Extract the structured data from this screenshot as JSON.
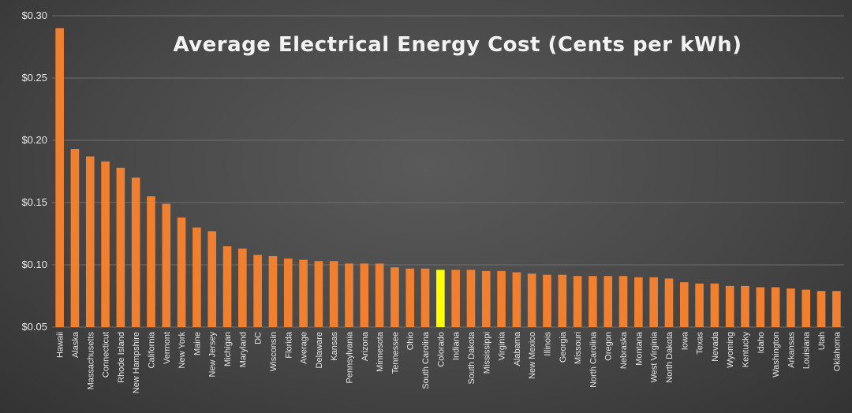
{
  "chart_data": {
    "type": "bar",
    "title": "Average Electrical Energy Cost (Cents per kWh)",
    "xlabel": "",
    "ylabel": "",
    "ylim": [
      0.05,
      0.3
    ],
    "yticks": [
      0.05,
      0.1,
      0.15,
      0.2,
      0.25,
      0.3
    ],
    "ytick_labels": [
      "$0.05",
      "$0.10",
      "$0.15",
      "$0.20",
      "$0.25",
      "$0.30"
    ],
    "grid": true,
    "bar_color": "#f07f30",
    "highlight_color": "#ffff00",
    "highlight_category": "Colorado",
    "categories": [
      "Hawaii",
      "Alaska",
      "Massachusetts",
      "Connecticut",
      "Rhode Island",
      "New Hampshire",
      "California",
      "Vermont",
      "New York",
      "Maine",
      "New Jersey",
      "Michigan",
      "Maryland",
      "DC",
      "Wisconsin",
      "Florida",
      "Average",
      "Delaware",
      "Kansas",
      "Pennsylvania",
      "Arizona",
      "Minnesota",
      "Tennessee",
      "Ohio",
      "South Carolina",
      "Colorado",
      "Indiana",
      "South Dakota",
      "Mississippi",
      "Virginia",
      "Alabama",
      "New Mexico",
      "Illinois",
      "Georgia",
      "Missouri",
      "North Carolina",
      "Oregon",
      "Nebraska",
      "Montana",
      "West Virginia",
      "North Dakota",
      "Iowa",
      "Texas",
      "Nevada",
      "Wyoming",
      "Kentucky",
      "Idaho",
      "Washington",
      "Arkansas",
      "Louisiana",
      "Utah",
      "Oklahoma"
    ],
    "values": [
      0.29,
      0.193,
      0.187,
      0.183,
      0.178,
      0.17,
      0.155,
      0.149,
      0.138,
      0.13,
      0.127,
      0.115,
      0.113,
      0.108,
      0.107,
      0.105,
      0.104,
      0.103,
      0.103,
      0.101,
      0.101,
      0.101,
      0.098,
      0.097,
      0.097,
      0.096,
      0.096,
      0.096,
      0.095,
      0.095,
      0.094,
      0.093,
      0.092,
      0.092,
      0.091,
      0.091,
      0.091,
      0.091,
      0.09,
      0.09,
      0.089,
      0.086,
      0.085,
      0.085,
      0.083,
      0.083,
      0.082,
      0.082,
      0.081,
      0.08,
      0.079,
      0.079
    ]
  }
}
